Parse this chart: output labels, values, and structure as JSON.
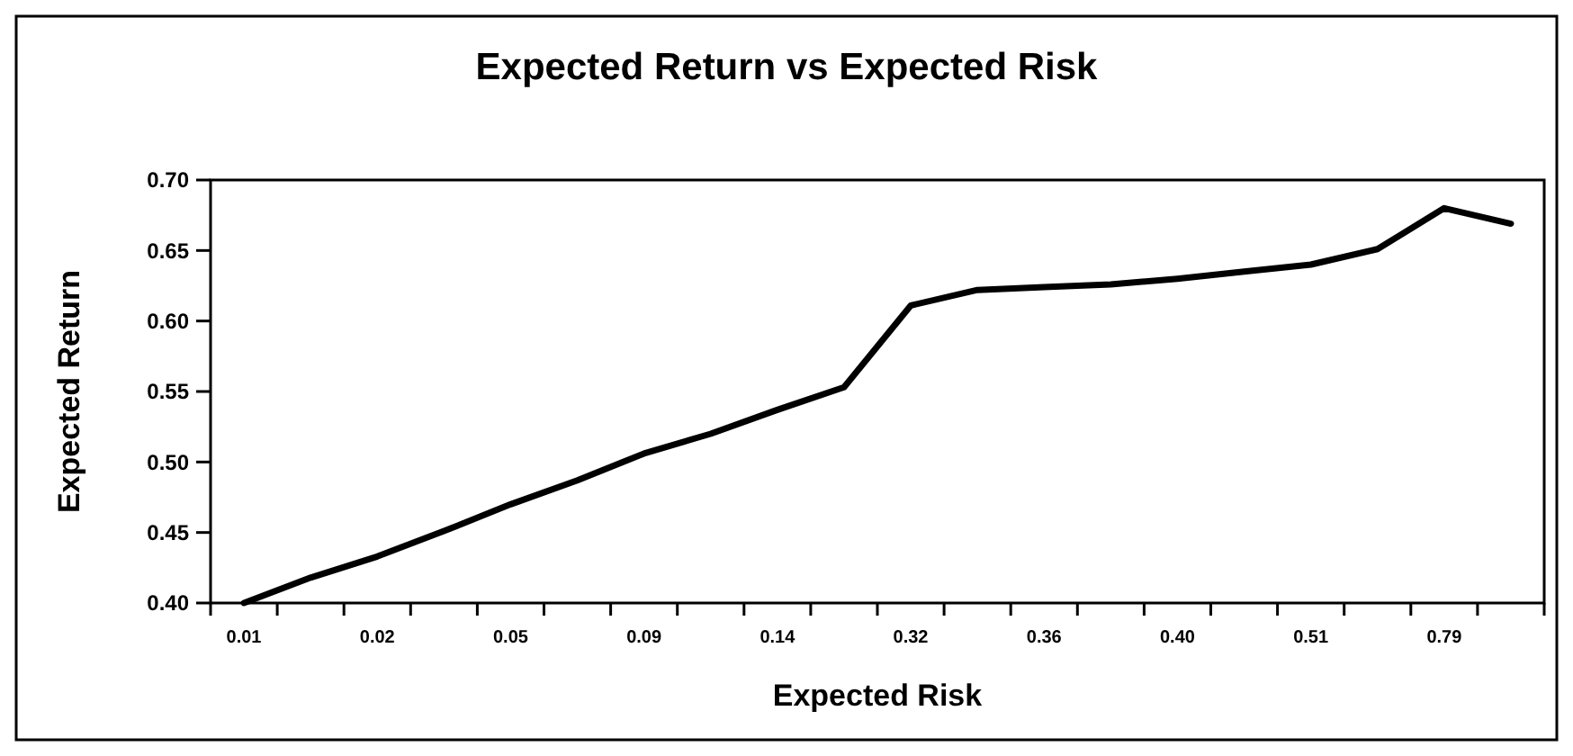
{
  "chart_data": {
    "type": "line",
    "title": "Expected Return vs Expected Risk",
    "xlabel": "Expected Risk",
    "ylabel": "Expected Return",
    "categories": [
      "0.01",
      null,
      "0.02",
      null,
      "0.05",
      null,
      "0.09",
      null,
      "0.14",
      null,
      "0.32",
      null,
      "0.36",
      null,
      "0.40",
      null,
      "0.51",
      null,
      "0.79",
      null
    ],
    "series": [
      {
        "color": "#000000",
        "values": [
          0.4,
          0.418,
          0.433,
          0.451,
          0.47,
          0.487,
          0.506,
          0.52,
          0.537,
          0.553,
          0.611,
          0.622,
          0.624,
          0.626,
          0.63,
          0.635,
          0.64,
          0.651,
          0.68,
          0.669
        ]
      }
    ],
    "ylim": [
      0.4,
      0.7
    ],
    "yticks": [
      {
        "value": 0.4,
        "label": "0.40"
      },
      {
        "value": 0.45,
        "label": "0.45"
      },
      {
        "value": 0.5,
        "label": "0.50"
      },
      {
        "value": 0.55,
        "label": "0.55"
      },
      {
        "value": 0.6,
        "label": "0.60"
      },
      {
        "value": 0.65,
        "label": "0.65"
      },
      {
        "value": 0.7,
        "label": "0.70"
      }
    ],
    "grid": false,
    "marker": "none",
    "line_style": "solid"
  }
}
